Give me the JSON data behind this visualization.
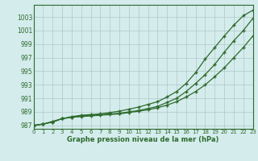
{
  "x": [
    0,
    1,
    2,
    3,
    4,
    5,
    6,
    7,
    8,
    9,
    10,
    11,
    12,
    13,
    14,
    15,
    16,
    17,
    18,
    19,
    20,
    21,
    22,
    23
  ],
  "line1": [
    987.0,
    987.2,
    987.6,
    988.0,
    988.3,
    988.5,
    988.6,
    988.7,
    988.9,
    989.1,
    989.4,
    989.7,
    990.1,
    990.5,
    991.2,
    992.0,
    993.2,
    994.8,
    996.8,
    998.5,
    1000.2,
    1001.8,
    1003.2,
    1004.0
  ],
  "line2": [
    987.0,
    987.2,
    987.5,
    988.0,
    988.2,
    988.4,
    988.5,
    988.6,
    988.7,
    988.8,
    989.0,
    989.2,
    989.5,
    989.8,
    990.4,
    991.0,
    992.0,
    993.2,
    994.5,
    996.0,
    997.8,
    999.5,
    1001.0,
    1002.8
  ],
  "line3": [
    987.0,
    987.2,
    987.5,
    988.0,
    988.2,
    988.3,
    988.4,
    988.5,
    988.6,
    988.7,
    988.9,
    989.1,
    989.3,
    989.6,
    990.0,
    990.5,
    991.2,
    992.0,
    993.0,
    994.2,
    995.5,
    997.0,
    998.5,
    1000.2
  ],
  "line_color": "#2d6a2d",
  "marker": "+",
  "bg_color": "#d4ecec",
  "grid_color": "#b0c8c8",
  "xlabel": "Graphe pression niveau de la mer (hPa)",
  "yticks": [
    987,
    989,
    991,
    993,
    995,
    997,
    999,
    1001,
    1003
  ],
  "xticks": [
    0,
    1,
    2,
    3,
    4,
    5,
    6,
    7,
    8,
    9,
    10,
    11,
    12,
    13,
    14,
    15,
    16,
    17,
    18,
    19,
    20,
    21,
    22,
    23
  ],
  "xlim": [
    0,
    23
  ],
  "ylim": [
    986.5,
    1004.8
  ]
}
